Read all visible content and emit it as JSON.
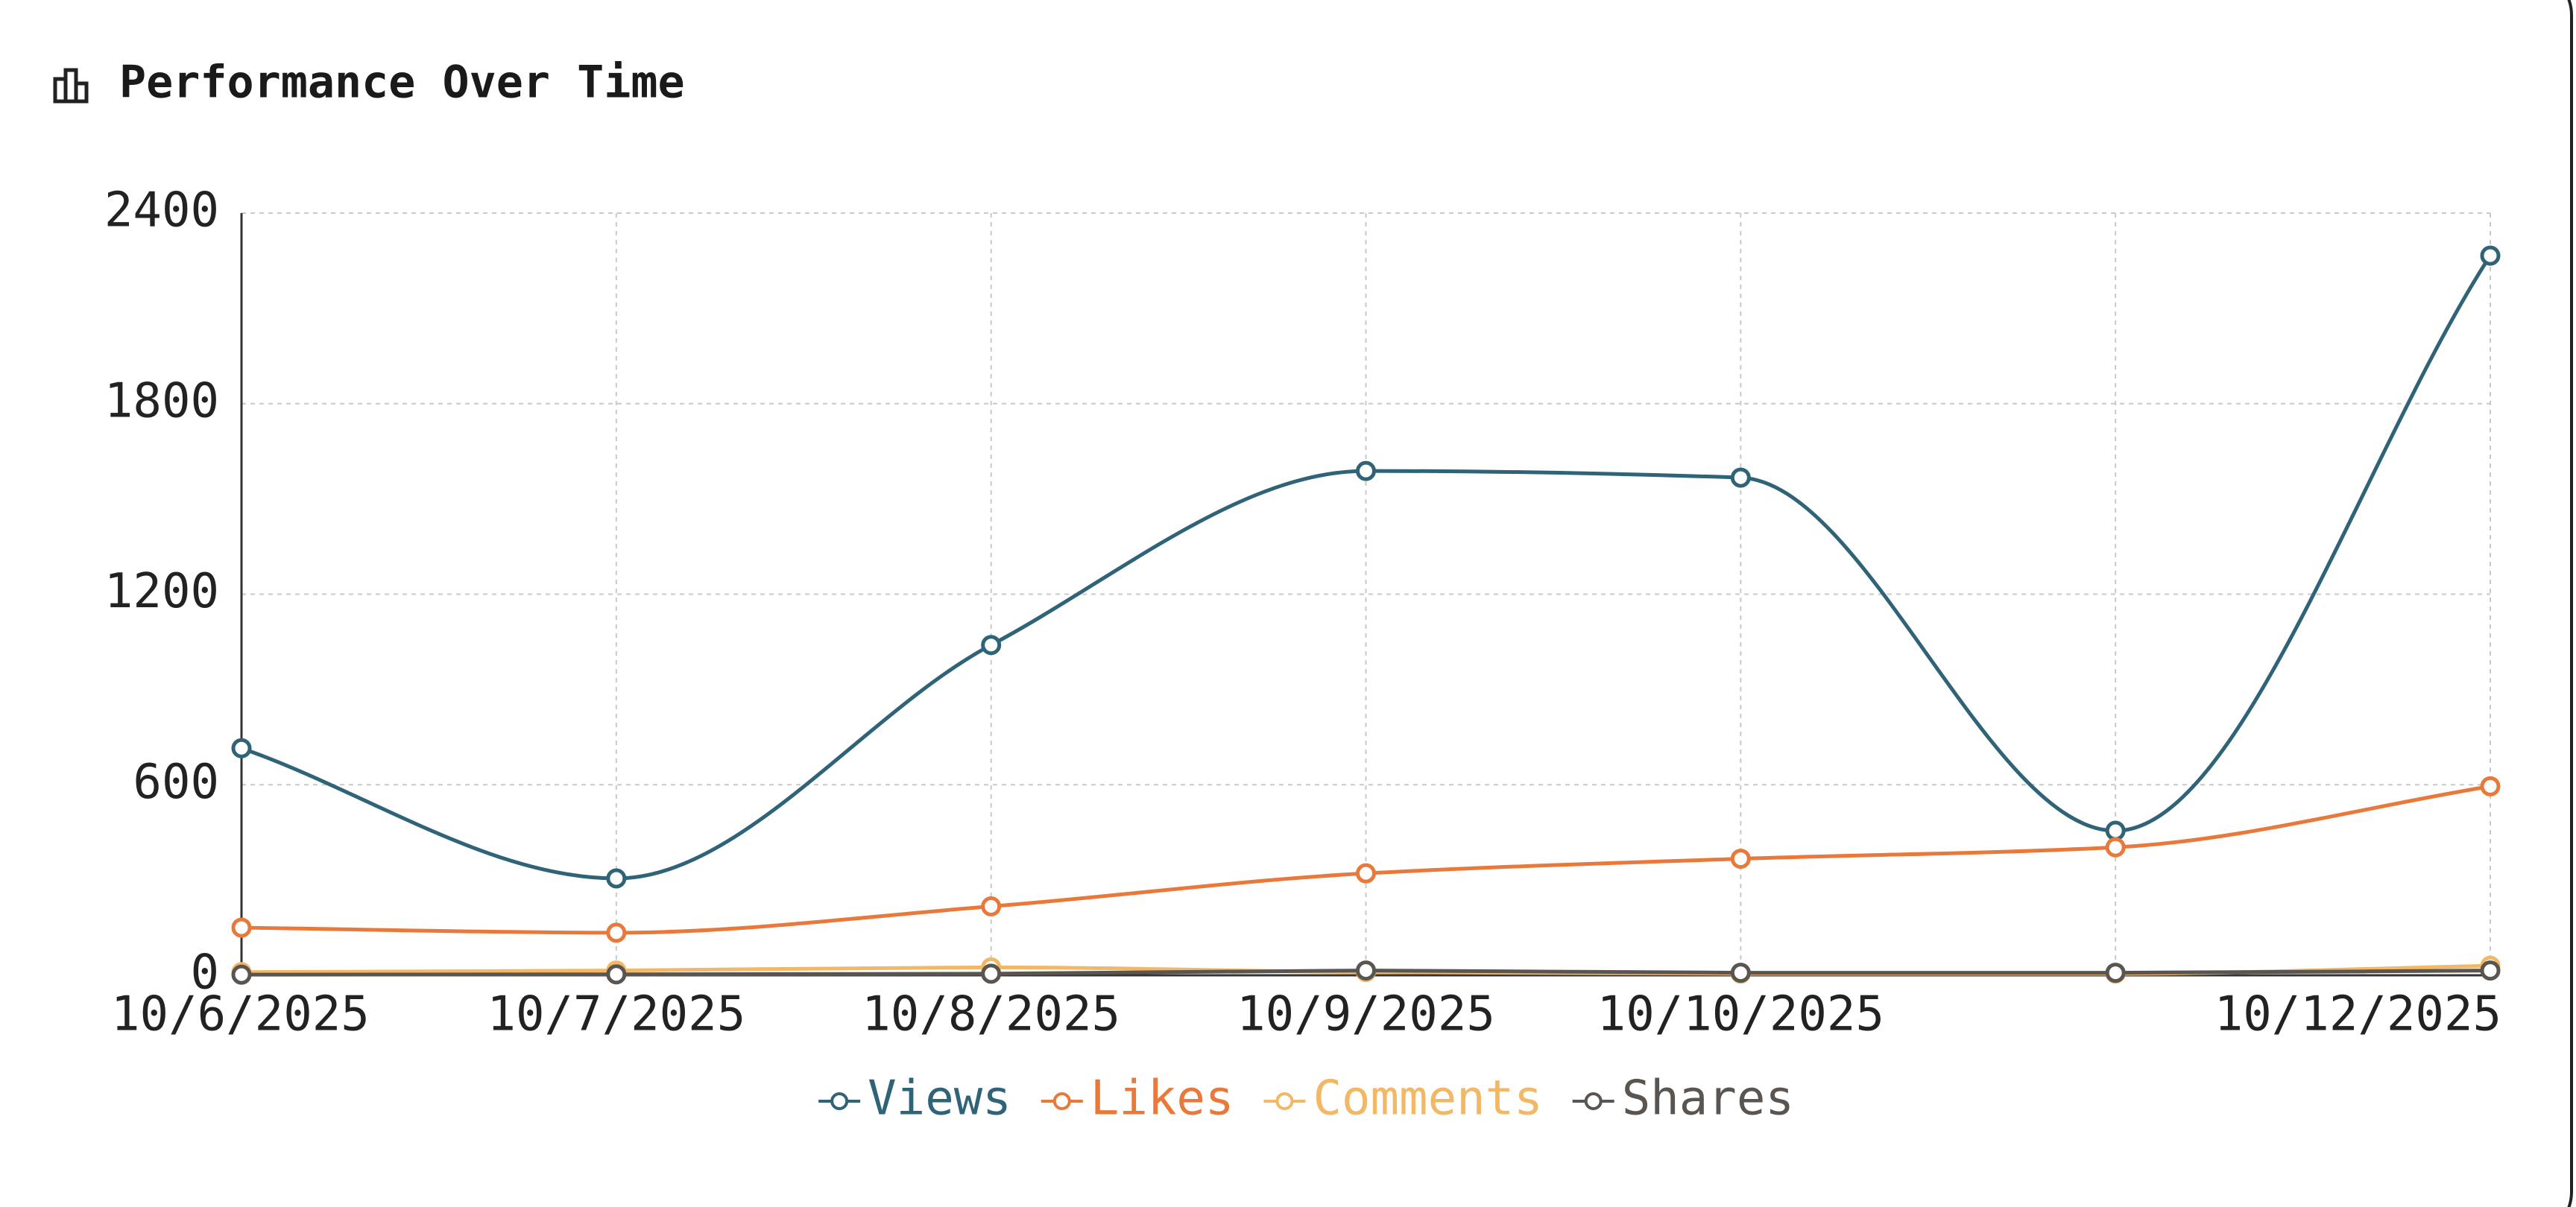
{
  "chart_data": {
    "type": "line",
    "title": "Performance Over Time",
    "categories": [
      "10/6/2025",
      "10/7/2025",
      "10/8/2025",
      "10/9/2025",
      "10/10/2025",
      null,
      "10/12/2025"
    ],
    "series": [
      {
        "name": "Views",
        "color": "#2f6377",
        "values": [
          715,
          305,
          1040,
          1588,
          1567,
          455,
          2266
        ]
      },
      {
        "name": "Likes",
        "color": "#e8793a",
        "values": [
          150,
          134,
          217,
          321,
          367,
          403,
          595
        ]
      },
      {
        "name": "Comments",
        "color": "#f2b866",
        "values": [
          10,
          15,
          25,
          10,
          5,
          5,
          30
        ]
      },
      {
        "name": "Shares",
        "color": "#5a5550",
        "values": [
          2,
          3,
          5,
          15,
          8,
          8,
          15
        ]
      }
    ],
    "ylim": [
      0,
      2400
    ],
    "yticks": [
      0,
      600,
      1200,
      1800,
      2400
    ],
    "grid": true,
    "legend": "bottom"
  }
}
